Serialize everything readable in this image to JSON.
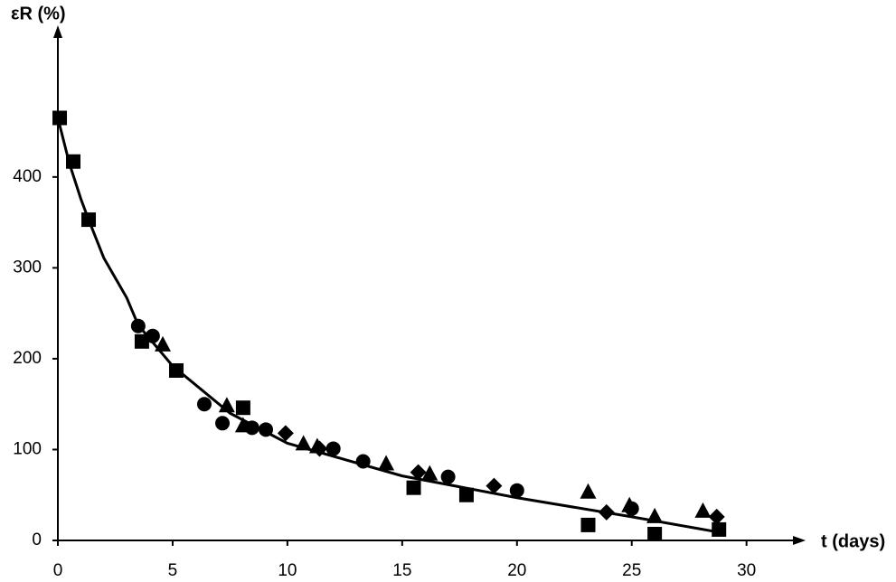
{
  "chart_data": {
    "type": "scatter",
    "x_label": "t (days)",
    "y_label": "εR (%)",
    "xlim": [
      0,
      32.1
    ],
    "ylim": [
      0,
      555
    ],
    "xticks": [
      0,
      5,
      10,
      15,
      20,
      25,
      30
    ],
    "yticks": [
      0,
      100,
      200,
      300,
      400
    ],
    "series": [
      {
        "marker": "square",
        "color": "#000000",
        "x": [
          0.08,
          0.67,
          1.34,
          3.66,
          5.16,
          8.07,
          15.5,
          17.8,
          23.1,
          26.0,
          28.8
        ],
        "values": [
          465,
          417,
          353,
          219,
          187,
          146,
          58,
          50,
          17,
          7,
          12
        ]
      },
      {
        "marker": "circle",
        "color": "#000000",
        "x": [
          3.5,
          4.13,
          6.38,
          7.17,
          8.46,
          9.06,
          12.0,
          13.3,
          17.0,
          20.0,
          25.0
        ],
        "values": [
          236,
          225,
          150,
          129,
          124,
          122,
          101,
          87,
          70,
          55,
          35
        ]
      },
      {
        "marker": "triangle",
        "color": "#000000",
        "x": [
          4.57,
          7.36,
          8.07,
          10.7,
          11.3,
          14.3,
          16.2,
          23.1,
          24.9,
          26.0,
          28.1
        ],
        "values": [
          215,
          148,
          126,
          106,
          103,
          84,
          73,
          53,
          38,
          26,
          32
        ]
      },
      {
        "marker": "diamond",
        "color": "#000000",
        "x": [
          9.92,
          11.4,
          15.7,
          19.0,
          23.9,
          28.7
        ],
        "values": [
          118,
          101,
          75,
          60,
          31,
          26
        ]
      },
      {
        "type": "line",
        "color": "#000000",
        "x": [
          0,
          0.5,
          1,
          1.34,
          2,
          3,
          3.5,
          5,
          7.5,
          10,
          15,
          20,
          25,
          28.8
        ],
        "values": [
          465,
          415,
          376,
          353,
          311,
          267,
          237,
          192,
          140,
          107,
          71,
          47,
          26,
          9
        ]
      }
    ]
  }
}
